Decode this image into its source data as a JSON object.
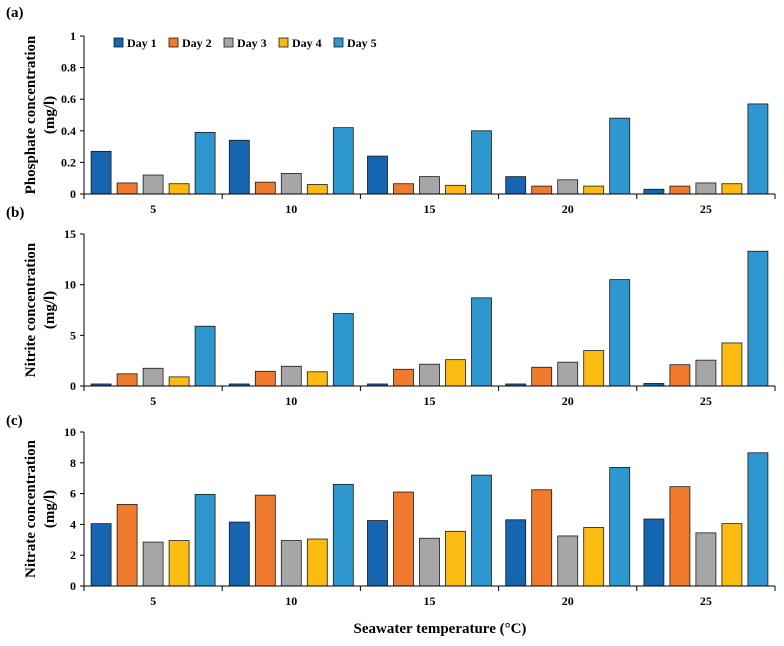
{
  "colors": {
    "Day 1": "#1565b0",
    "Day 2": "#f07a2e",
    "Day 3": "#a6a6a6",
    "Day 4": "#fbbb10",
    "Day 5": "#2e97cf"
  },
  "xlabel": "Seawater temperature (°C)",
  "chart_data": [
    {
      "type": "bar",
      "panel": "(a)",
      "ylabel": [
        "Phosphate concentration",
        "(mg/l)"
      ],
      "ylim": [
        0,
        1
      ],
      "yticks": [
        0,
        0.2,
        0.4,
        0.6,
        0.8,
        1
      ],
      "ytick_labels": [
        "0",
        "0.2",
        "0.4",
        "0.6",
        "0.8",
        "1"
      ],
      "categories": [
        "5",
        "10",
        "15",
        "20",
        "25"
      ],
      "legend": "top-left",
      "series": [
        {
          "name": "Day 1",
          "values": [
            0.27,
            0.34,
            0.24,
            0.11,
            0.03
          ]
        },
        {
          "name": "Day 2",
          "values": [
            0.07,
            0.075,
            0.065,
            0.05,
            0.05
          ]
        },
        {
          "name": "Day 3",
          "values": [
            0.12,
            0.13,
            0.11,
            0.09,
            0.07
          ]
        },
        {
          "name": "Day 4",
          "values": [
            0.065,
            0.06,
            0.055,
            0.05,
            0.065
          ]
        },
        {
          "name": "Day 5",
          "values": [
            0.39,
            0.42,
            0.4,
            0.48,
            0.57
          ]
        }
      ]
    },
    {
      "type": "bar",
      "panel": "(b)",
      "ylabel": [
        "Nitrite concentration",
        "(mg/l)"
      ],
      "ylim": [
        0,
        15
      ],
      "yticks": [
        0,
        5,
        10,
        15
      ],
      "ytick_labels": [
        "0",
        "5",
        "10",
        "15"
      ],
      "categories": [
        "5",
        "10",
        "15",
        "20",
        "25"
      ],
      "series": [
        {
          "name": "Day 1",
          "values": [
            0.2,
            0.2,
            0.2,
            0.2,
            0.25
          ]
        },
        {
          "name": "Day 2",
          "values": [
            1.2,
            1.45,
            1.65,
            1.85,
            2.1
          ]
        },
        {
          "name": "Day 3",
          "values": [
            1.75,
            1.95,
            2.15,
            2.35,
            2.55
          ]
        },
        {
          "name": "Day 4",
          "values": [
            0.9,
            1.4,
            2.6,
            3.5,
            4.25
          ]
        },
        {
          "name": "Day 5",
          "values": [
            5.9,
            7.15,
            8.7,
            10.5,
            13.3
          ]
        }
      ]
    },
    {
      "type": "bar",
      "panel": "(c)",
      "ylabel": [
        "Nitrate concentration",
        "(mg/l)"
      ],
      "ylim": [
        0,
        10
      ],
      "yticks": [
        0,
        2,
        4,
        6,
        8,
        10
      ],
      "ytick_labels": [
        "0",
        "2",
        "4",
        "6",
        "8",
        "10"
      ],
      "categories": [
        "5",
        "10",
        "15",
        "20",
        "25"
      ],
      "series": [
        {
          "name": "Day 1",
          "values": [
            4.05,
            4.15,
            4.25,
            4.3,
            4.35
          ]
        },
        {
          "name": "Day 2",
          "values": [
            5.3,
            5.9,
            6.1,
            6.25,
            6.45
          ]
        },
        {
          "name": "Day 3",
          "values": [
            2.85,
            2.95,
            3.1,
            3.25,
            3.45
          ]
        },
        {
          "name": "Day 4",
          "values": [
            2.95,
            3.05,
            3.55,
            3.8,
            4.05
          ]
        },
        {
          "name": "Day 5",
          "values": [
            5.95,
            6.6,
            7.2,
            7.7,
            8.65
          ]
        }
      ]
    }
  ]
}
